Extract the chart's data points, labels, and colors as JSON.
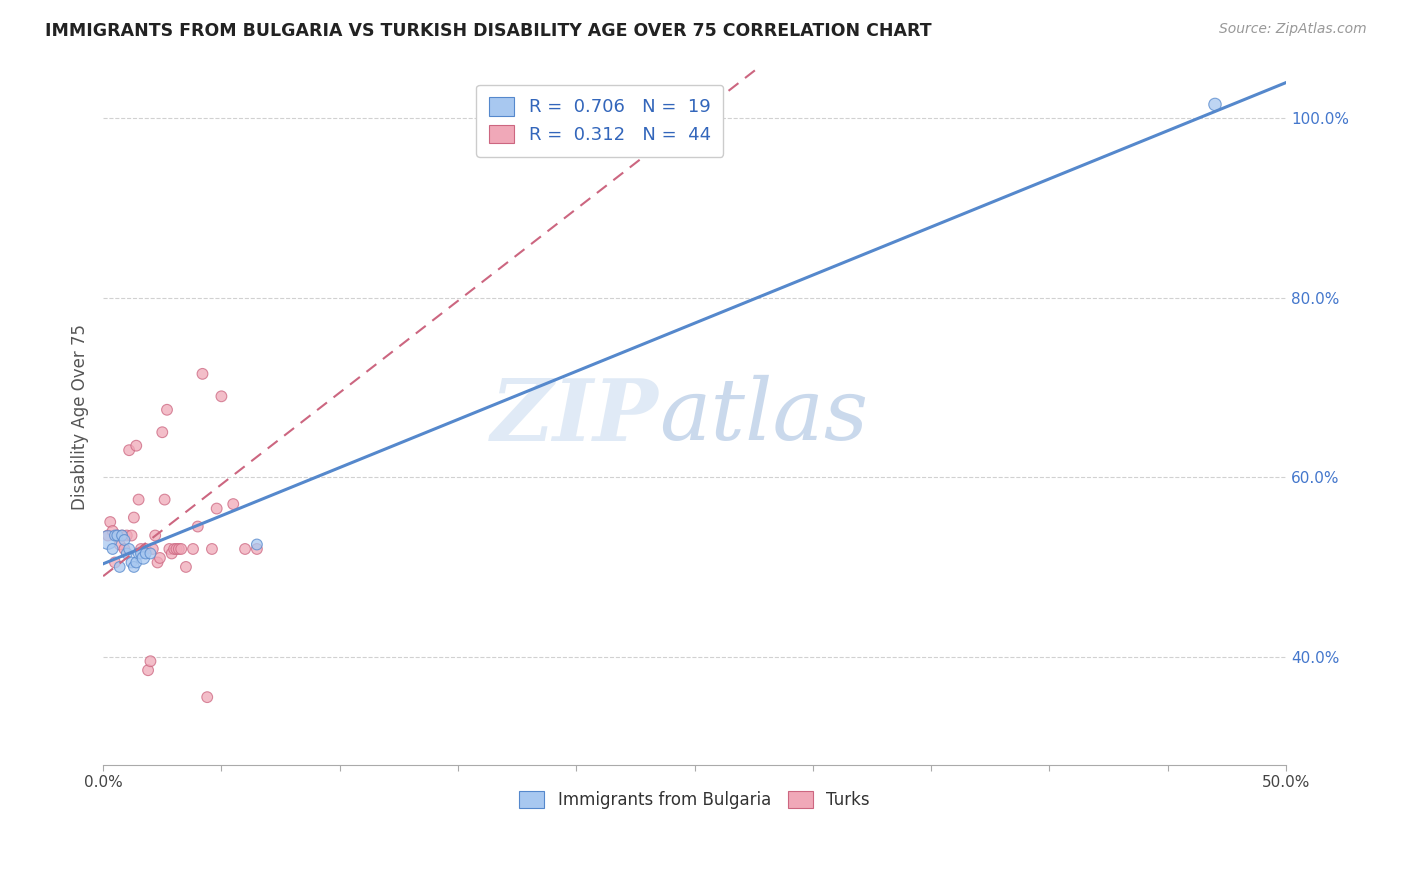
{
  "title": "IMMIGRANTS FROM BULGARIA VS TURKISH DISABILITY AGE OVER 75 CORRELATION CHART",
  "source": "Source: ZipAtlas.com",
  "ylabel_label": "Disability Age Over 75",
  "x_min": 0.0,
  "x_max": 0.5,
  "y_min": 0.28,
  "y_max": 1.055,
  "x_ticks": [
    0.0,
    0.05,
    0.1,
    0.15,
    0.2,
    0.25,
    0.3,
    0.35,
    0.4,
    0.45,
    0.5
  ],
  "x_tick_labels": [
    "0.0%",
    "",
    "",
    "",
    "",
    "",
    "",
    "",
    "",
    "",
    "50.0%"
  ],
  "y_ticks": [
    0.4,
    0.6,
    0.8,
    1.0
  ],
  "y_tick_labels": [
    "40.0%",
    "60.0%",
    "80.0%",
    "100.0%"
  ],
  "watermark_zip": "ZIP",
  "watermark_atlas": "atlas",
  "legend_r1": "0.706",
  "legend_n1": "19",
  "legend_r2": "0.312",
  "legend_n2": "44",
  "color_bulgaria": "#a8c8f0",
  "color_turks": "#f0a8b8",
  "line_color_bulgaria": "#5588cc",
  "line_color_turks": "#cc6680",
  "bg_color": "#ffffff",
  "grid_color": "#cccccc",
  "bulgaria_scatter_x": [
    0.002,
    0.004,
    0.005,
    0.006,
    0.007,
    0.008,
    0.009,
    0.01,
    0.011,
    0.012,
    0.013,
    0.014,
    0.015,
    0.016,
    0.017,
    0.018,
    0.02,
    0.065,
    0.47
  ],
  "bulgaria_scatter_y": [
    0.53,
    0.52,
    0.535,
    0.535,
    0.5,
    0.535,
    0.53,
    0.515,
    0.52,
    0.505,
    0.5,
    0.505,
    0.515,
    0.515,
    0.51,
    0.515,
    0.515,
    0.525,
    1.015
  ],
  "turks_scatter_x": [
    0.002,
    0.003,
    0.004,
    0.005,
    0.006,
    0.007,
    0.008,
    0.009,
    0.01,
    0.011,
    0.012,
    0.013,
    0.014,
    0.015,
    0.016,
    0.018,
    0.019,
    0.02,
    0.021,
    0.022,
    0.023,
    0.024,
    0.025,
    0.026,
    0.027,
    0.028,
    0.029,
    0.03,
    0.031,
    0.032,
    0.033,
    0.035,
    0.038,
    0.04,
    0.042,
    0.044,
    0.046,
    0.048,
    0.05,
    0.055,
    0.06,
    0.065,
    0.19,
    0.245
  ],
  "turks_scatter_y": [
    0.535,
    0.55,
    0.54,
    0.505,
    0.535,
    0.525,
    0.535,
    0.52,
    0.535,
    0.63,
    0.535,
    0.555,
    0.635,
    0.575,
    0.52,
    0.52,
    0.385,
    0.395,
    0.52,
    0.535,
    0.505,
    0.51,
    0.65,
    0.575,
    0.675,
    0.52,
    0.515,
    0.52,
    0.52,
    0.52,
    0.52,
    0.5,
    0.52,
    0.545,
    0.715,
    0.355,
    0.52,
    0.565,
    0.69,
    0.57,
    0.52,
    0.52,
    0.965,
    1.015
  ],
  "bulgaria_point_sizes": [
    180,
    60,
    60,
    60,
    60,
    60,
    60,
    60,
    60,
    60,
    60,
    60,
    60,
    60,
    80,
    60,
    60,
    60,
    80
  ],
  "turks_point_sizes": [
    60,
    60,
    60,
    60,
    60,
    60,
    60,
    60,
    60,
    60,
    60,
    60,
    60,
    60,
    60,
    60,
    60,
    60,
    60,
    60,
    60,
    60,
    60,
    60,
    60,
    60,
    60,
    60,
    60,
    60,
    60,
    60,
    60,
    60,
    60,
    60,
    60,
    60,
    60,
    60,
    60,
    60,
    80,
    80
  ]
}
